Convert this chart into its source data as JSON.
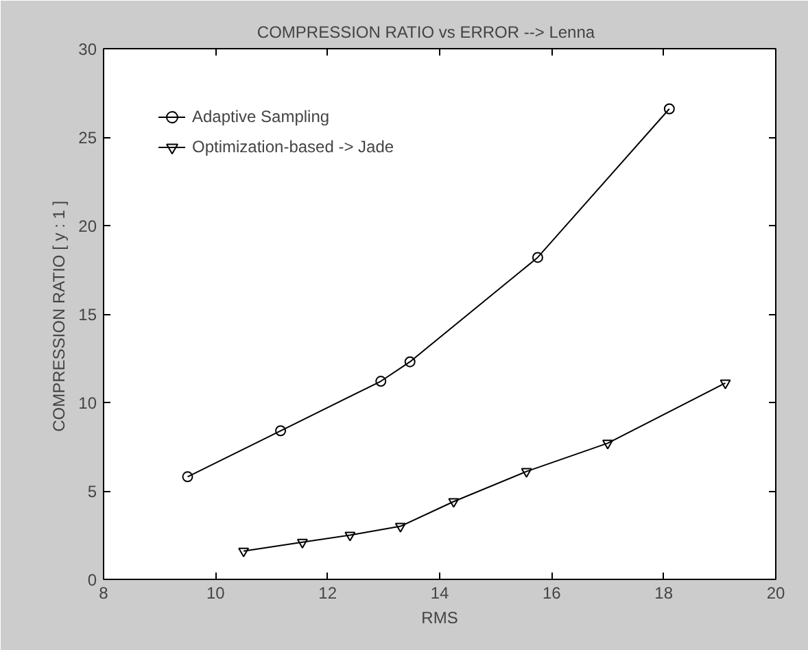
{
  "chart_data": {
    "type": "line",
    "title": "COMPRESSION RATIO  vs  ERROR   -->   Lenna",
    "xlabel": "RMS",
    "ylabel": "COMPRESSION RATIO  [ y : 1 ]",
    "xlim": [
      8,
      20
    ],
    "xticks": [
      8,
      10,
      12,
      14,
      16,
      18,
      20
    ],
    "ylim": [
      0,
      30
    ],
    "yticks": [
      0,
      5,
      10,
      15,
      20,
      25,
      30
    ],
    "grid": false,
    "legend": "top left",
    "series": [
      {
        "name": "Adaptive Sampling",
        "color": "#000000",
        "marker": "circle",
        "x": [
          9.5,
          11.16,
          12.95,
          13.47,
          15.75,
          18.1
        ],
        "values": [
          5.8,
          8.4,
          11.2,
          12.3,
          18.2,
          26.6
        ]
      },
      {
        "name": "Optimization-based -> Jade",
        "color": "#000000",
        "marker": "triangle",
        "x": [
          10.5,
          11.55,
          12.4,
          13.3,
          14.25,
          15.55,
          17.0,
          19.1
        ],
        "values": [
          1.6,
          2.1,
          2.5,
          3.0,
          4.4,
          6.1,
          7.7,
          11.1
        ]
      }
    ]
  }
}
